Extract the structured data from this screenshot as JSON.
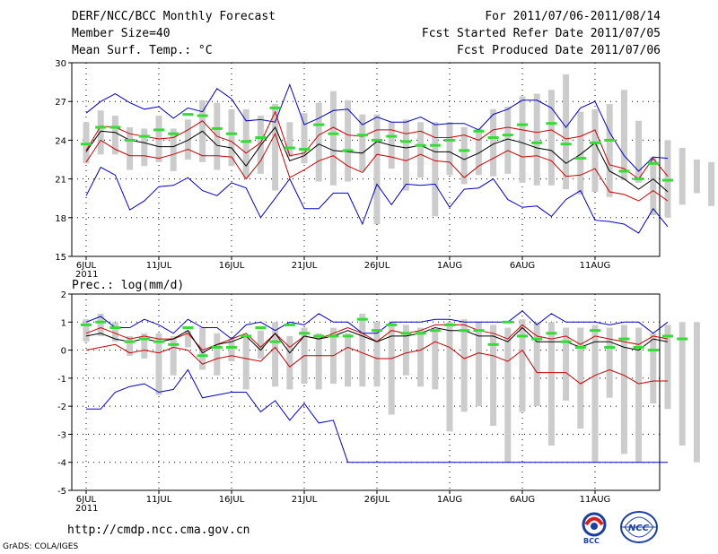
{
  "header": {
    "title": "DERF/NCC/BCC Monthly Forecast",
    "member_size": "Member Size=40",
    "variable": "Mean Surf. Temp.: °C",
    "period": "For 2011/07/06-2011/08/14",
    "fcst_started": "Fcst Started Refer Date 2011/07/05",
    "fcst_produced": "Fcst Produced Date 2011/07/06"
  },
  "footer": {
    "url": "http://cmdp.ncc.cma.gov.cn",
    "credit": "GrADS: COLA/IGES",
    "logo_bcc": "BCC",
    "logo_ncc": "NCC"
  },
  "colors": {
    "max_min": "#0000cc",
    "mean": "#000000",
    "spread": "#cc0000",
    "obs": "#33dd33",
    "box": "#cccccc"
  },
  "chart_data": [
    {
      "type": "line",
      "title": "Mean Surf. Temp.: °C",
      "year_label": "2011",
      "x_ticks": [
        "6JUL",
        "11JUL",
        "16JUL",
        "21JUL",
        "26JUL",
        "1AUG",
        "6AUG",
        "11AUG"
      ],
      "ylim": [
        15,
        30
      ],
      "y_ticks": [
        15,
        18,
        21,
        24,
        27,
        30
      ],
      "series": [
        {
          "name": "max",
          "values": [
            26.1,
            27.0,
            27.6,
            26.9,
            26.4,
            26.6,
            25.7,
            26.5,
            26.2,
            28.0,
            27.2,
            25.5,
            25.6,
            25.4,
            28.3,
            25.2,
            25.7,
            26.3,
            26.4,
            25.2,
            25.8,
            25.4,
            25.4,
            25.8,
            25.2,
            25.3,
            25.3,
            24.8,
            26.0,
            26.4,
            27.1,
            27.1,
            26.5,
            25.0,
            26.5,
            27.0,
            24.6,
            22.8,
            21.6,
            22.7,
            22.6
          ]
        },
        {
          "name": "upper",
          "values": [
            23.2,
            25.1,
            25.0,
            24.5,
            24.3,
            24.1,
            24.2,
            24.8,
            25.5,
            24.3,
            23.9,
            23.0,
            23.8,
            26.2,
            22.8,
            23.0,
            24.4,
            25.0,
            24.4,
            24.3,
            24.8,
            24.8,
            24.5,
            24.7,
            24.2,
            24.2,
            24.4,
            24.0,
            24.8,
            25.0,
            24.8,
            24.6,
            24.8,
            24.1,
            24.3,
            24.8,
            22.1,
            21.8,
            21.0,
            22.6,
            21.2
          ]
        },
        {
          "name": "mean",
          "values": [
            23.1,
            24.7,
            24.6,
            24.0,
            23.8,
            23.5,
            23.5,
            24.0,
            24.7,
            23.6,
            23.4,
            22.0,
            23.6,
            25.0,
            22.4,
            22.8,
            23.7,
            23.2,
            23.1,
            23.0,
            23.9,
            23.6,
            23.4,
            23.6,
            23.1,
            23.1,
            22.5,
            23.0,
            23.7,
            24.1,
            23.8,
            23.4,
            23.2,
            22.2,
            22.9,
            23.8,
            21.6,
            21.0,
            20.2,
            21.0,
            20.0
          ]
        },
        {
          "name": "lower",
          "values": [
            22.3,
            24.0,
            23.3,
            22.8,
            22.8,
            22.6,
            22.9,
            23.3,
            22.8,
            22.8,
            22.7,
            21.0,
            22.4,
            24.5,
            21.1,
            21.7,
            22.4,
            22.8,
            22.0,
            21.5,
            22.9,
            22.7,
            22.4,
            22.9,
            22.4,
            22.3,
            21.1,
            22.0,
            22.6,
            23.2,
            22.7,
            22.8,
            22.4,
            21.2,
            21.3,
            21.8,
            20.0,
            19.8,
            19.3,
            20.1,
            19.3
          ]
        },
        {
          "name": "min",
          "values": [
            19.7,
            21.9,
            21.3,
            18.6,
            19.3,
            20.4,
            20.5,
            21.1,
            20.1,
            19.7,
            20.7,
            20.3,
            18.0,
            19.5,
            21.0,
            18.7,
            18.7,
            19.9,
            19.9,
            17.5,
            20.6,
            19.0,
            20.6,
            20.5,
            20.6,
            18.8,
            20.2,
            20.3,
            21.0,
            19.4,
            18.8,
            18.9,
            18.1,
            19.4,
            20.1,
            17.8,
            17.7,
            17.5,
            16.8,
            18.7,
            17.3
          ]
        },
        {
          "name": "obs",
          "values": [
            23.7,
            25.0,
            25.0,
            24.0,
            24.3,
            24.8,
            24.5,
            26.0,
            25.9,
            24.9,
            24.5,
            23.9,
            24.2,
            26.5,
            23.4,
            23.3,
            25.2,
            24.5,
            23.2,
            24.4,
            24.0,
            24.3,
            23.9,
            23.6,
            23.6,
            24.0,
            23.2,
            24.7,
            24.2,
            24.4,
            25.2,
            23.8,
            25.3,
            23.7,
            22.6,
            23.8,
            24.0,
            21.6,
            21.0,
            22.2,
            20.9
          ]
        },
        {
          "name": "box_top",
          "values": [
            25.4,
            26.3,
            25.9,
            25.0,
            24.9,
            25.9,
            24.9,
            25.6,
            27.1,
            26.9,
            26.4,
            26.4,
            25.9,
            26.8,
            25.4,
            26.1,
            26.9,
            27.8,
            27.1,
            26.0,
            26.0,
            25.4,
            25.6,
            25.4,
            25.4,
            25.4,
            25.0,
            24.9,
            26.4,
            26.6,
            27.4,
            27.6,
            27.9,
            29.1,
            26.2,
            26.4,
            26.8,
            27.9,
            25.5,
            22.7,
            24.0,
            23.4,
            22.5,
            22.3
          ]
        },
        {
          "name": "box_bottom",
          "values": [
            22.2,
            22.9,
            22.9,
            21.7,
            22.0,
            22.3,
            21.6,
            22.5,
            22.3,
            21.7,
            22.0,
            21.1,
            21.4,
            20.1,
            22.7,
            22.2,
            20.8,
            20.5,
            20.8,
            21.6,
            17.5,
            21.8,
            20.1,
            21.1,
            18.1,
            21.3,
            20.6,
            21.3,
            21.2,
            21.4,
            20.7,
            20.5,
            20.5,
            20.2,
            19.8,
            20.0,
            19.6,
            20.9,
            20.7,
            18.2,
            18.0,
            19.0,
            19.9,
            18.9
          ]
        }
      ]
    },
    {
      "type": "line",
      "title": "Prec.: log(mm/d)",
      "year_label": "2011",
      "x_ticks": [
        "6JUL",
        "11JUL",
        "16JUL",
        "21JUL",
        "26JUL",
        "1AUG",
        "6AUG",
        "11AUG"
      ],
      "ylim": [
        -5,
        2
      ],
      "y_ticks": [
        -5,
        -4,
        -3,
        -2,
        -1,
        0,
        1,
        2
      ],
      "series": [
        {
          "name": "max",
          "values": [
            1.0,
            1.2,
            0.8,
            0.8,
            1.1,
            0.9,
            0.6,
            1.1,
            0.8,
            0.8,
            0.4,
            0.9,
            1.0,
            0.7,
            1.0,
            0.9,
            1.3,
            1.0,
            1.0,
            0.6,
            0.6,
            1.0,
            1.0,
            1.0,
            1.1,
            1.1,
            1.0,
            1.0,
            1.0,
            1.0,
            1.4,
            0.9,
            1.3,
            1.0,
            1.0,
            1.0,
            0.9,
            1.0,
            1.0,
            0.6,
            1.0
          ]
        },
        {
          "name": "upper",
          "values": [
            0.6,
            0.8,
            0.6,
            0.4,
            0.5,
            0.4,
            0.4,
            0.6,
            0.0,
            0.2,
            0.4,
            0.6,
            0.1,
            0.6,
            0.1,
            0.5,
            0.4,
            0.6,
            0.8,
            0.6,
            0.3,
            0.7,
            0.6,
            0.7,
            0.9,
            0.9,
            0.9,
            0.7,
            0.6,
            0.4,
            0.9,
            0.5,
            0.4,
            0.5,
            0.2,
            0.5,
            0.4,
            0.3,
            0.2,
            0.5,
            0.4
          ]
        },
        {
          "name": "mean",
          "values": [
            0.5,
            0.6,
            0.4,
            0.3,
            0.4,
            0.3,
            0.4,
            0.7,
            -0.1,
            0.2,
            0.3,
            0.5,
            0.0,
            0.6,
            -0.1,
            0.5,
            0.4,
            0.5,
            0.7,
            0.5,
            0.3,
            0.5,
            0.5,
            0.6,
            0.8,
            0.7,
            0.7,
            0.5,
            0.5,
            0.3,
            0.8,
            0.3,
            0.3,
            0.3,
            0.1,
            0.3,
            0.3,
            0.1,
            0.0,
            0.4,
            0.3
          ]
        },
        {
          "name": "lower",
          "values": [
            0.0,
            0.1,
            0.2,
            -0.1,
            0.0,
            -0.1,
            0.1,
            0.0,
            -0.5,
            -0.3,
            -0.2,
            -0.3,
            -0.4,
            0.1,
            -0.6,
            -0.2,
            -0.2,
            -0.2,
            0.1,
            -0.1,
            -0.3,
            -0.3,
            -0.1,
            0.0,
            0.3,
            0.1,
            -0.3,
            -0.1,
            -0.2,
            -0.4,
            0.0,
            -0.8,
            -0.8,
            -0.8,
            -1.2,
            -0.9,
            -0.7,
            -0.9,
            -1.2,
            -1.1,
            -1.1
          ]
        },
        {
          "name": "min",
          "values": [
            -2.1,
            -2.1,
            -1.5,
            -1.3,
            -1.2,
            -1.5,
            -1.4,
            -0.7,
            -1.7,
            -1.6,
            -1.5,
            -1.5,
            -2.2,
            -1.8,
            -2.5,
            -1.9,
            -2.6,
            -2.5,
            -4.0,
            -4.0,
            -4.0,
            -4.0,
            -4.0,
            -4.0,
            -4.0,
            -4.0,
            -4.0,
            -4.0,
            -4.0,
            -4.0,
            -4.0,
            -4.0,
            -4.0,
            -4.0,
            -4.0,
            -4.0,
            -4.0,
            -4.0,
            -4.0,
            -4.0,
            -4.0
          ]
        },
        {
          "name": "obs",
          "values": [
            0.9,
            1.0,
            0.8,
            0.3,
            0.4,
            0.3,
            0.2,
            0.8,
            -0.2,
            0.1,
            0.1,
            0.5,
            0.8,
            0.3,
            0.9,
            0.6,
            0.5,
            0.5,
            0.5,
            1.1,
            0.7,
            0.9,
            0.6,
            0.6,
            0.7,
            0.9,
            0.7,
            0.7,
            0.2,
            1.0,
            0.5,
            0.4,
            0.6,
            0.3,
            0.1,
            0.7,
            0.1,
            0.4,
            0.1,
            0.0,
            0.5,
            0.4
          ]
        },
        {
          "name": "box_top",
          "values": [
            1.1,
            1.3,
            1.0,
            0.5,
            0.6,
            0.6,
            0.5,
            0.7,
            0.8,
            0.6,
            0.4,
            0.5,
            0.7,
            1.0,
            0.5,
            0.8,
            0.6,
            0.8,
            0.6,
            1.3,
            1.0,
            1.0,
            0.9,
            0.8,
            0.7,
            1.0,
            1.1,
            1.0,
            0.9,
            0.8,
            1.1,
            1.0,
            1.0,
            0.8,
            0.8,
            0.9,
            0.8,
            0.9,
            0.8,
            0.6,
            0.9,
            1.0,
            1.0
          ]
        },
        {
          "name": "box_bottom",
          "values": [
            0.3,
            0.5,
            0.3,
            -0.2,
            -0.3,
            -1.6,
            -0.9,
            0.1,
            -0.7,
            -0.9,
            -0.4,
            -1.4,
            -0.3,
            -1.3,
            -1.4,
            -1.2,
            -1.4,
            -1.2,
            -1.3,
            -1.3,
            -1.3,
            -2.3,
            -0.9,
            -1.3,
            -1.4,
            -2.9,
            -2.2,
            -2.0,
            -2.7,
            -4.0,
            -2.2,
            -2.0,
            -3.4,
            -1.8,
            -2.8,
            -4.0,
            -1.7,
            -3.7,
            -4.0,
            -1.9,
            -2.1,
            -3.4,
            -4.0
          ]
        }
      ]
    }
  ]
}
